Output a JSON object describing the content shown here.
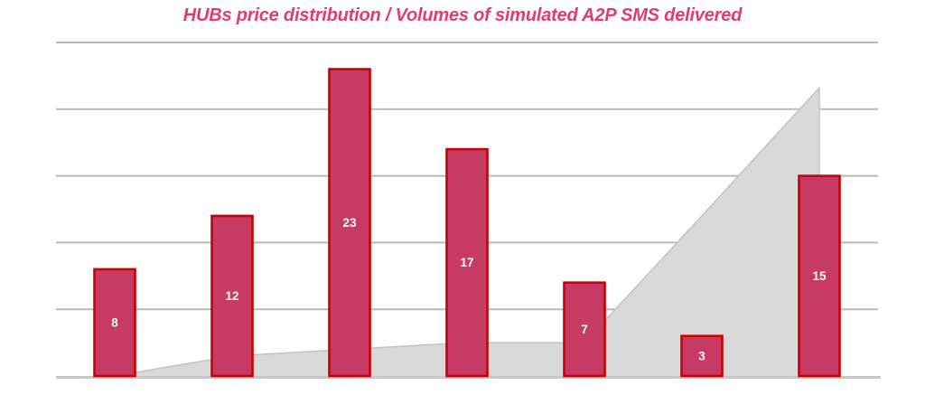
{
  "title": "HUBs price distribution / Volumes of simulated A2P SMS delivered",
  "colors": {
    "background": "#ffffff",
    "title": "#e43b6f",
    "bar_fill": "#c63a63",
    "bar_border": "#cc0000",
    "bar_label": "#ffffff",
    "gridline": "#b9b9b9",
    "axis_line": "#c6c6c6",
    "area_fill": "#d9d9d9",
    "area_edge": "#c2c2c2"
  },
  "chart_data": {
    "type": "combo",
    "title": "HUBs price distribution / Volumes of simulated A2P SMS delivered",
    "n_categories": 7,
    "categories": [
      "",
      "",
      "",
      "",
      "",
      "",
      ""
    ],
    "series": [
      {
        "name": "HUBs price distribution",
        "type": "bar",
        "values": [
          8,
          12,
          23,
          17,
          7,
          3,
          15
        ],
        "data_labels": [
          8,
          12,
          23,
          17,
          7,
          3,
          15
        ]
      },
      {
        "name": "Volumes of simulated A2P SMS delivered",
        "type": "area",
        "values": [
          0,
          1.5,
          2,
          2.5,
          2.5,
          12,
          21.6
        ],
        "values_estimated": true
      }
    ],
    "xlabel": "",
    "ylabel": "",
    "ylim": [
      0,
      25
    ],
    "gridline_step": 5,
    "grid": true,
    "axis_tick_labels_visible": false,
    "legend_position": "none"
  }
}
